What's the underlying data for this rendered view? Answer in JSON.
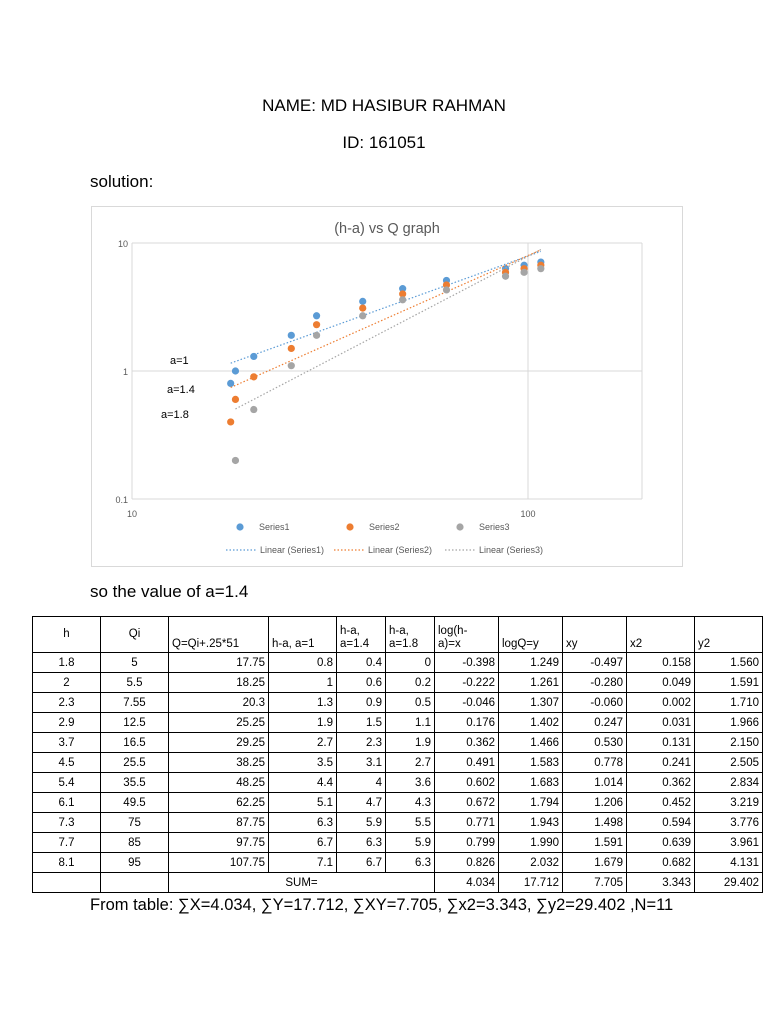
{
  "header": {
    "name": "NAME: MD HASIBUR RAHMAN",
    "id": "ID: 161051"
  },
  "solution_label": "solution:",
  "conclusion": "so the value of a=1.4",
  "summary": "From table: ∑X=4.034, ∑Y=17.712, ∑XY=7.705, ∑x2=3.343, ∑y2=29.402 ,N=11",
  "colors": {
    "series1": "#5b9bd5",
    "series2": "#ed7d31",
    "series3": "#a5a5a5",
    "grid": "#d9d9d9",
    "axis_text": "#595959"
  },
  "chart_data": {
    "type": "scatter",
    "title": "(h-a) vs Q graph",
    "x_scale": "log",
    "y_scale": "log",
    "xlim": [
      10,
      200
    ],
    "ylim": [
      0.1,
      10
    ],
    "x_ticks": [
      "10",
      "100"
    ],
    "y_ticks": [
      "10",
      "1",
      "0.1"
    ],
    "grid": true,
    "legend_position": "bottom",
    "x": [
      17.75,
      18.25,
      20.3,
      25.25,
      29.25,
      38.25,
      48.25,
      62.25,
      87.75,
      97.75,
      107.75
    ],
    "series": [
      {
        "name": "Series1",
        "values": [
          0.8,
          1,
          1.3,
          1.9,
          2.7,
          3.5,
          4.4,
          5.1,
          6.3,
          6.7,
          7.1
        ],
        "trend": "Linear (Series1)"
      },
      {
        "name": "Series2",
        "values": [
          0.4,
          0.6,
          0.9,
          1.5,
          2.3,
          3.1,
          4,
          4.7,
          5.9,
          6.3,
          6.7
        ],
        "trend": "Linear (Series2)"
      },
      {
        "name": "Series3",
        "values": [
          0.2,
          0.5,
          1.1,
          1.9,
          2.7,
          3.6,
          4.3,
          5.5,
          5.9,
          6.3
        ],
        "x_indices": [
          1,
          2,
          3,
          4,
          5,
          6,
          7,
          8,
          9,
          10
        ],
        "trend": "Linear (Series3)"
      }
    ],
    "annotations": [
      "a=1",
      "a=1.4",
      "a=1.8"
    ]
  },
  "table": {
    "headers": [
      "h",
      "Qi",
      "Q=Qi+.25*51",
      "h-a, a=1",
      "h-a,\na=1.4",
      "h-a,\na=1.8",
      "log(h-\na)=x",
      "logQ=y",
      "xy",
      "x2",
      "y2"
    ],
    "rows": [
      [
        "1.8",
        "5",
        "17.75",
        "0.8",
        "0.4",
        "0",
        "-0.398",
        "1.249",
        "-0.497",
        "0.158",
        "1.560"
      ],
      [
        "2",
        "5.5",
        "18.25",
        "1",
        "0.6",
        "0.2",
        "-0.222",
        "1.261",
        "-0.280",
        "0.049",
        "1.591"
      ],
      [
        "2.3",
        "7.55",
        "20.3",
        "1.3",
        "0.9",
        "0.5",
        "-0.046",
        "1.307",
        "-0.060",
        "0.002",
        "1.710"
      ],
      [
        "2.9",
        "12.5",
        "25.25",
        "1.9",
        "1.5",
        "1.1",
        "0.176",
        "1.402",
        "0.247",
        "0.031",
        "1.966"
      ],
      [
        "3.7",
        "16.5",
        "29.25",
        "2.7",
        "2.3",
        "1.9",
        "0.362",
        "1.466",
        "0.530",
        "0.131",
        "2.150"
      ],
      [
        "4.5",
        "25.5",
        "38.25",
        "3.5",
        "3.1",
        "2.7",
        "0.491",
        "1.583",
        "0.778",
        "0.241",
        "2.505"
      ],
      [
        "5.4",
        "35.5",
        "48.25",
        "4.4",
        "4",
        "3.6",
        "0.602",
        "1.683",
        "1.014",
        "0.362",
        "2.834"
      ],
      [
        "6.1",
        "49.5",
        "62.25",
        "5.1",
        "4.7",
        "4.3",
        "0.672",
        "1.794",
        "1.206",
        "0.452",
        "3.219"
      ],
      [
        "7.3",
        "75",
        "87.75",
        "6.3",
        "5.9",
        "5.5",
        "0.771",
        "1.943",
        "1.498",
        "0.594",
        "3.776"
      ],
      [
        "7.7",
        "85",
        "97.75",
        "6.7",
        "6.3",
        "5.9",
        "0.799",
        "1.990",
        "1.591",
        "0.639",
        "3.961"
      ],
      [
        "8.1",
        "95",
        "107.75",
        "7.1",
        "6.7",
        "6.3",
        "0.826",
        "2.032",
        "1.679",
        "0.682",
        "4.131"
      ]
    ],
    "sum_label": "SUM=",
    "sums": [
      "4.034",
      "17.712",
      "7.705",
      "3.343",
      "29.402"
    ]
  }
}
